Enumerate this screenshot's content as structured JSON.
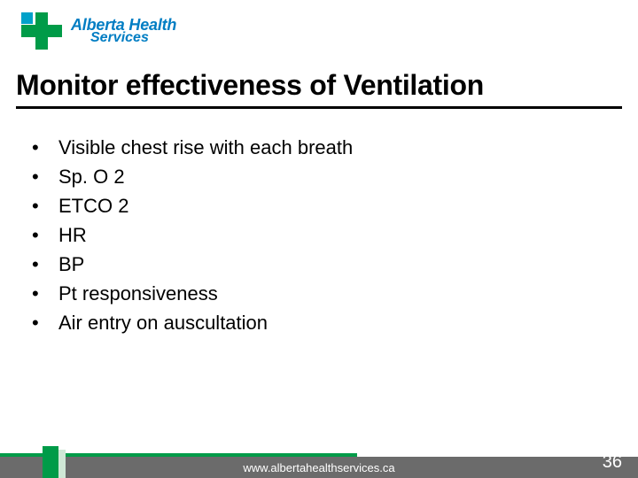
{
  "colors": {
    "brand_green": "#009b48",
    "brand_blue": "#007dc3",
    "brand_cyan": "#00a1c9",
    "footer_grey": "#6b6b6b",
    "text": "#000000",
    "background": "#ffffff"
  },
  "logo": {
    "line1": "Alberta Health",
    "line2": "Services"
  },
  "title": "Monitor effectiveness of Ventilation",
  "bullets": [
    "Visible chest rise with each breath",
    "Sp. O 2",
    "ETCO 2",
    "HR",
    "BP",
    "Pt responsiveness",
    "Air entry on auscultation"
  ],
  "footer": {
    "url": "www.albertahealthservices.ca",
    "page_number": "36"
  },
  "typography": {
    "title_fontsize_pt": 24,
    "body_fontsize_pt": 16,
    "footer_fontsize_pt": 10
  }
}
